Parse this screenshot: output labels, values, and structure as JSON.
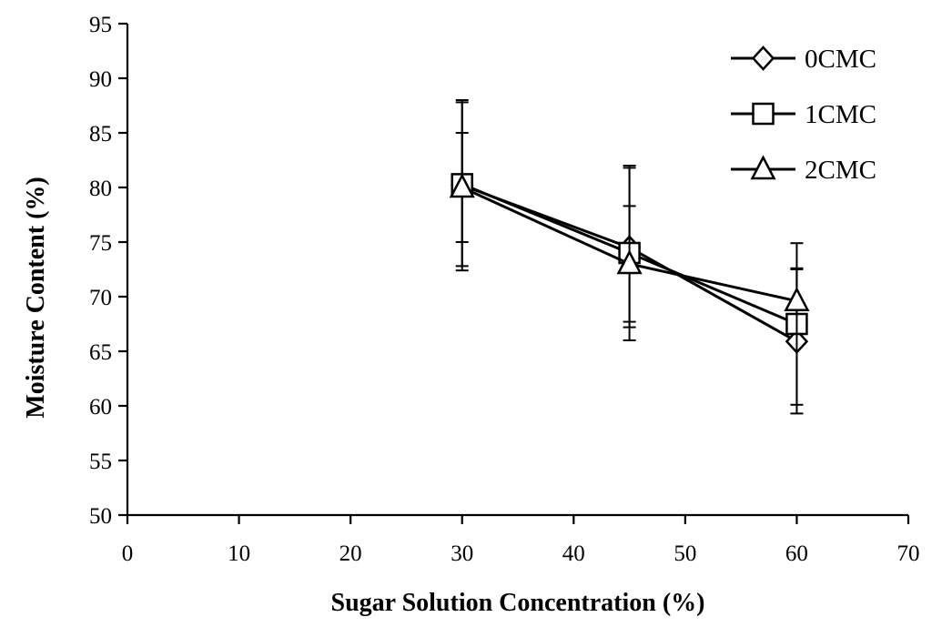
{
  "chart_data": {
    "type": "line",
    "title": "",
    "xlabel": "Sugar Solution Concentration (%)",
    "ylabel": "Moisture Content (%)",
    "xlim": [
      0,
      70
    ],
    "ylim": [
      50,
      95
    ],
    "xticks": [
      0,
      10,
      20,
      30,
      40,
      50,
      60,
      70
    ],
    "yticks": [
      50,
      55,
      60,
      65,
      70,
      75,
      80,
      85,
      90,
      95
    ],
    "grid": false,
    "legend_position": "top-right",
    "x": [
      30,
      45,
      60
    ],
    "series": [
      {
        "name": "0CMC",
        "marker": "diamond",
        "values": [
          80.2,
          74.5,
          65.9
        ],
        "error": [
          7.8,
          7.3,
          6.6
        ]
      },
      {
        "name": "1CMC",
        "marker": "square",
        "values": [
          80.3,
          74.0,
          67.5
        ],
        "error": [
          7.5,
          8.0,
          7.4
        ]
      },
      {
        "name": "2CMC",
        "marker": "triangle",
        "values": [
          80.0,
          73.0,
          69.6
        ],
        "error": [
          5.0,
          5.3,
          3.0
        ]
      }
    ]
  }
}
